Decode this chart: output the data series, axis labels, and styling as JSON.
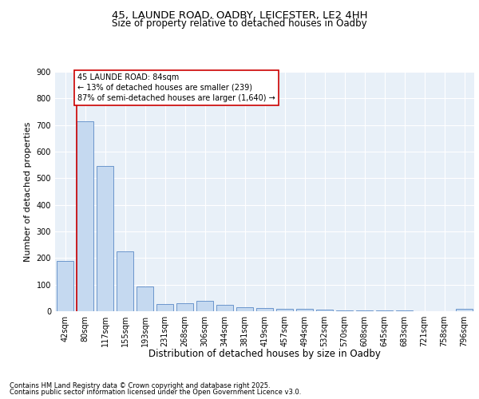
{
  "title1": "45, LAUNDE ROAD, OADBY, LEICESTER, LE2 4HH",
  "title2": "Size of property relative to detached houses in Oadby",
  "xlabel": "Distribution of detached houses by size in Oadby",
  "ylabel": "Number of detached properties",
  "bar_values": [
    190,
    715,
    545,
    225,
    92,
    27,
    30,
    38,
    23,
    15,
    12,
    10,
    8,
    5,
    4,
    3,
    2,
    2,
    0,
    0,
    8
  ],
  "bin_labels": [
    "42sqm",
    "80sqm",
    "117sqm",
    "155sqm",
    "193sqm",
    "231sqm",
    "268sqm",
    "306sqm",
    "344sqm",
    "381sqm",
    "419sqm",
    "457sqm",
    "494sqm",
    "532sqm",
    "570sqm",
    "608sqm",
    "645sqm",
    "683sqm",
    "721sqm",
    "758sqm",
    "796sqm"
  ],
  "bar_color": "#c5d9f0",
  "bar_edge_color": "#5a8ac6",
  "background_color": "#e8f0f8",
  "grid_color": "#ffffff",
  "ylim": [
    0,
    900
  ],
  "yticks": [
    0,
    100,
    200,
    300,
    400,
    500,
    600,
    700,
    800,
    900
  ],
  "vline_x_index": 1,
  "vline_color": "#cc0000",
  "annotation_text": "45 LAUNDE ROAD: 84sqm\n← 13% of detached houses are smaller (239)\n87% of semi-detached houses are larger (1,640) →",
  "annotation_box_color": "#cc0000",
  "footer_line1": "Contains HM Land Registry data © Crown copyright and database right 2025.",
  "footer_line2": "Contains public sector information licensed under the Open Government Licence v3.0.",
  "title1_fontsize": 9.5,
  "title2_fontsize": 8.5,
  "axis_label_fontsize": 8,
  "tick_fontsize": 7,
  "annotation_fontsize": 7,
  "footer_fontsize": 6
}
